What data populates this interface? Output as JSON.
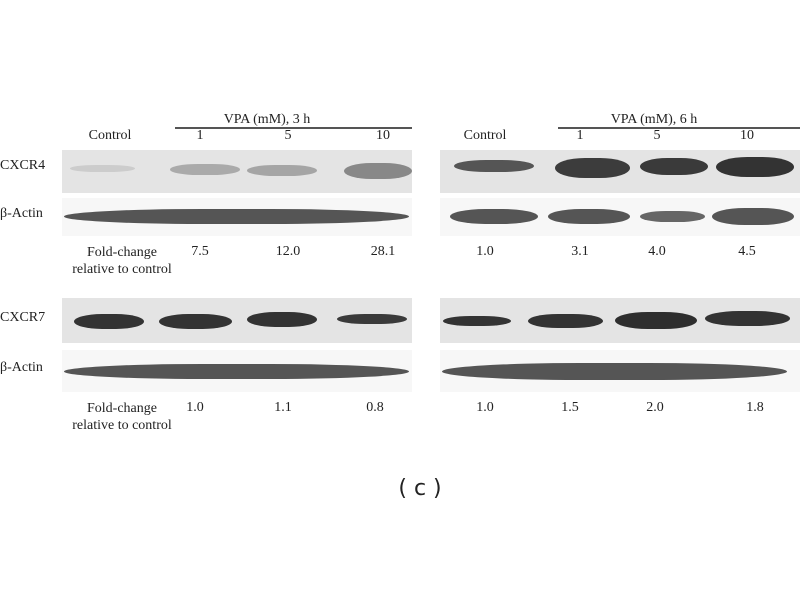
{
  "figure": {
    "panel_label": "( c )",
    "groups": [
      {
        "header": "VPA (mM), 3 h",
        "control": "Control",
        "doses": [
          "1",
          "5",
          "10"
        ]
      },
      {
        "header": "VPA (mM), 6 h",
        "control": "Control",
        "doses": [
          "1",
          "5",
          "10"
        ]
      }
    ],
    "blots": [
      {
        "protein": "CXCR4",
        "loading": "β-Actin",
        "fold_label": "Fold-change\nrelative to control",
        "left_fold": [
          "7.5",
          "12.0",
          "28.1"
        ],
        "right_fold": [
          "1.0",
          "3.1",
          "4.0",
          "4.5"
        ]
      },
      {
        "protein": "CXCR7",
        "loading": "β-Actin",
        "fold_label": "Fold-change\nrelative to control",
        "left_fold": [
          "1.0",
          "1.1",
          "0.8"
        ],
        "right_fold": [
          "1.0",
          "1.5",
          "2.0",
          "1.8"
        ]
      }
    ]
  }
}
